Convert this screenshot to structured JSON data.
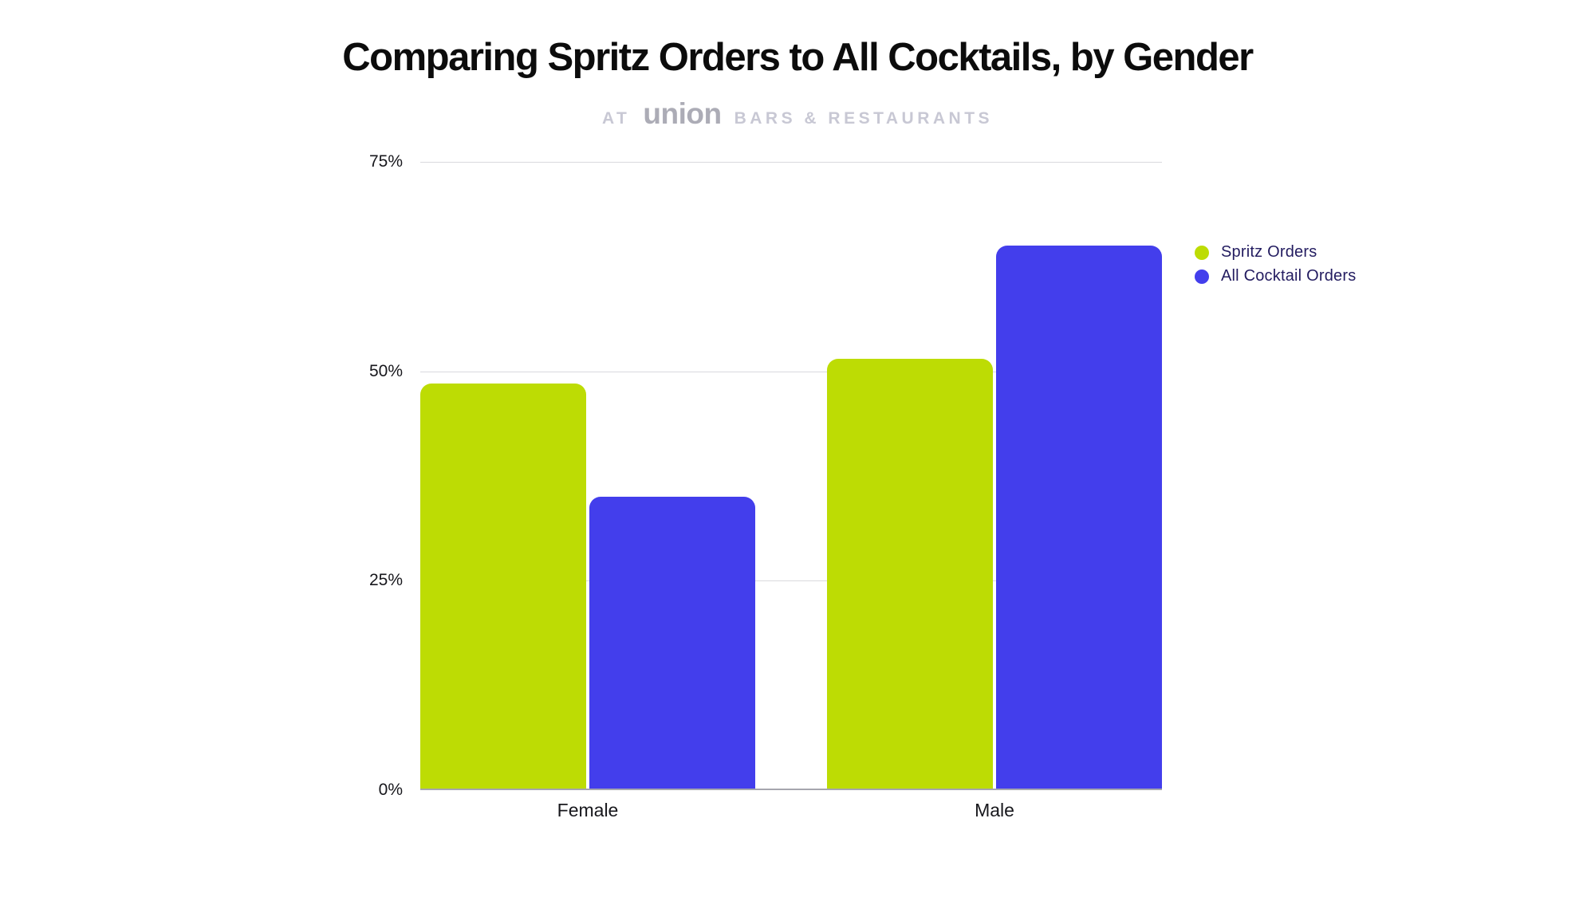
{
  "title": "Comparing Spritz Orders to All Cocktails, by Gender",
  "subtitle": {
    "prefix": "AT",
    "brand": "union",
    "suffix": "BARS & RESTAURANTS"
  },
  "colors": {
    "spritz_green": "#bddc04",
    "cocktail_blue": "#433eec",
    "legend_text": "#231c60",
    "gridline": "#d9d9de",
    "axis_line": "#a6a6ae",
    "title_text": "#0c0c0c",
    "subtitle_side_text": "#c8c8d4",
    "subtitle_brand_text": "#acacb6"
  },
  "chart_data": {
    "type": "bar",
    "title": "Comparing Spritz Orders to All Cocktails, by Gender",
    "subtitle": "AT union BARS & RESTAURANTS",
    "categories": [
      "Female",
      "Male"
    ],
    "series": [
      {
        "name": "Spritz Orders",
        "color": "#bddc04",
        "values": [
          48.5,
          51.5
        ]
      },
      {
        "name": "All Cocktail Orders",
        "color": "#433eec",
        "values": [
          35,
          65
        ]
      }
    ],
    "xlabel": "",
    "ylabel": "",
    "ylim": [
      0,
      75
    ],
    "yticks": [
      0,
      25,
      50,
      75
    ],
    "ytick_labels": [
      "0%",
      "25%",
      "50%",
      "75%"
    ],
    "grid": true,
    "legend_position": "right"
  }
}
